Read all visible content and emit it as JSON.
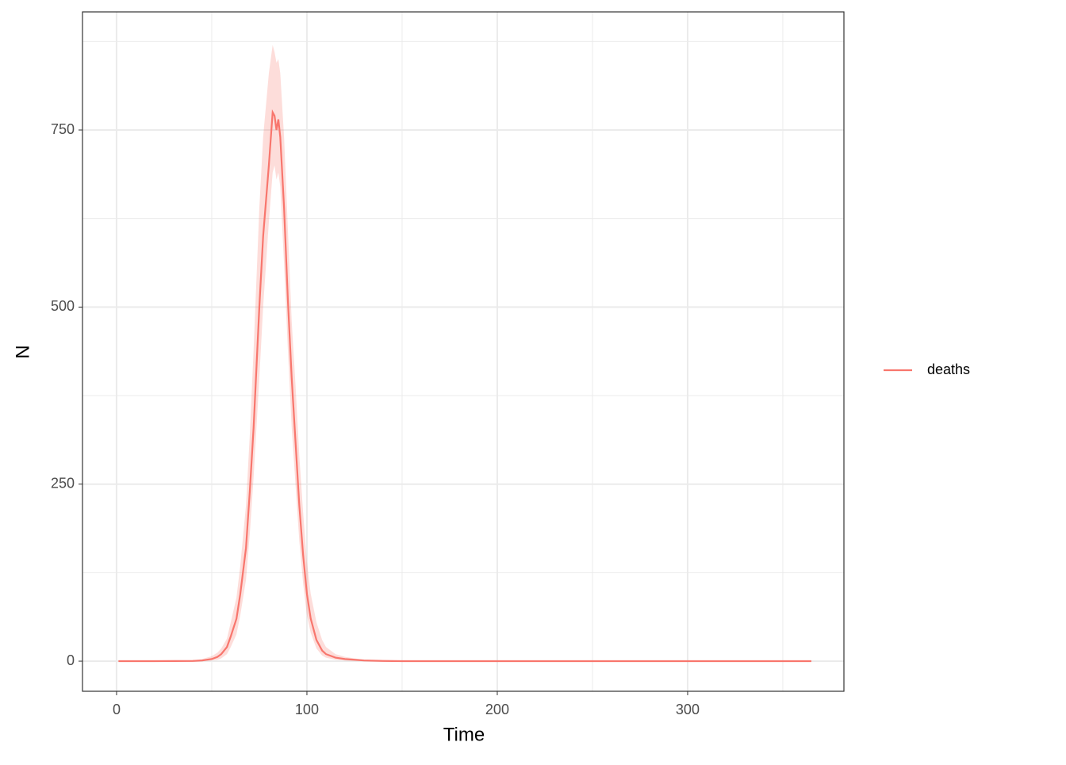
{
  "chart_data": {
    "type": "line",
    "x_label": "Time",
    "y_label": "N",
    "x": [
      1,
      20,
      40,
      45,
      50,
      53,
      55,
      58,
      60,
      63,
      65,
      68,
      70,
      72,
      75,
      77,
      80,
      82,
      83,
      84,
      85,
      86,
      88,
      90,
      92,
      94,
      96,
      98,
      100,
      102,
      105,
      108,
      110,
      115,
      120,
      125,
      130,
      140,
      150,
      200,
      250,
      300,
      365
    ],
    "series": [
      {
        "name": "deaths",
        "color": "#F8766D",
        "values": [
          0,
          0,
          0.3,
          1,
          3,
          6,
          10,
          20,
          35,
          60,
          95,
          160,
          240,
          330,
          500,
          600,
          700,
          775,
          770,
          750,
          765,
          740,
          640,
          510,
          400,
          310,
          220,
          150,
          95,
          60,
          30,
          15,
          10,
          5,
          3,
          2,
          1,
          0.3,
          0,
          0,
          0,
          0,
          0
        ],
        "lower": [
          0,
          0,
          0,
          0.2,
          1,
          2,
          4,
          10,
          20,
          38,
          65,
          115,
          180,
          260,
          400,
          500,
          620,
          690,
          700,
          680,
          690,
          670,
          560,
          440,
          330,
          250,
          170,
          110,
          65,
          40,
          18,
          8,
          5,
          2,
          1,
          0.5,
          0,
          0,
          0,
          0,
          0,
          0,
          0
        ],
        "upper": [
          0,
          0,
          1,
          3,
          7,
          12,
          18,
          32,
          55,
          90,
          135,
          220,
          320,
          440,
          640,
          740,
          830,
          870,
          860,
          845,
          850,
          830,
          740,
          610,
          480,
          390,
          290,
          210,
          140,
          95,
          55,
          30,
          20,
          10,
          6,
          4,
          2,
          1,
          0,
          0,
          0,
          0,
          0
        ]
      }
    ],
    "xlim": [
      -17.9,
      382.1
    ],
    "xticks": [
      0,
      100,
      200,
      300
    ],
    "x_minor": [
      50,
      150,
      250,
      350
    ],
    "ylim": [
      -42.5,
      916.8
    ],
    "yticks": [
      0,
      250,
      500,
      750
    ],
    "y_minor": [
      125,
      375,
      625,
      875
    ],
    "grid": true,
    "legend_position": "right"
  }
}
